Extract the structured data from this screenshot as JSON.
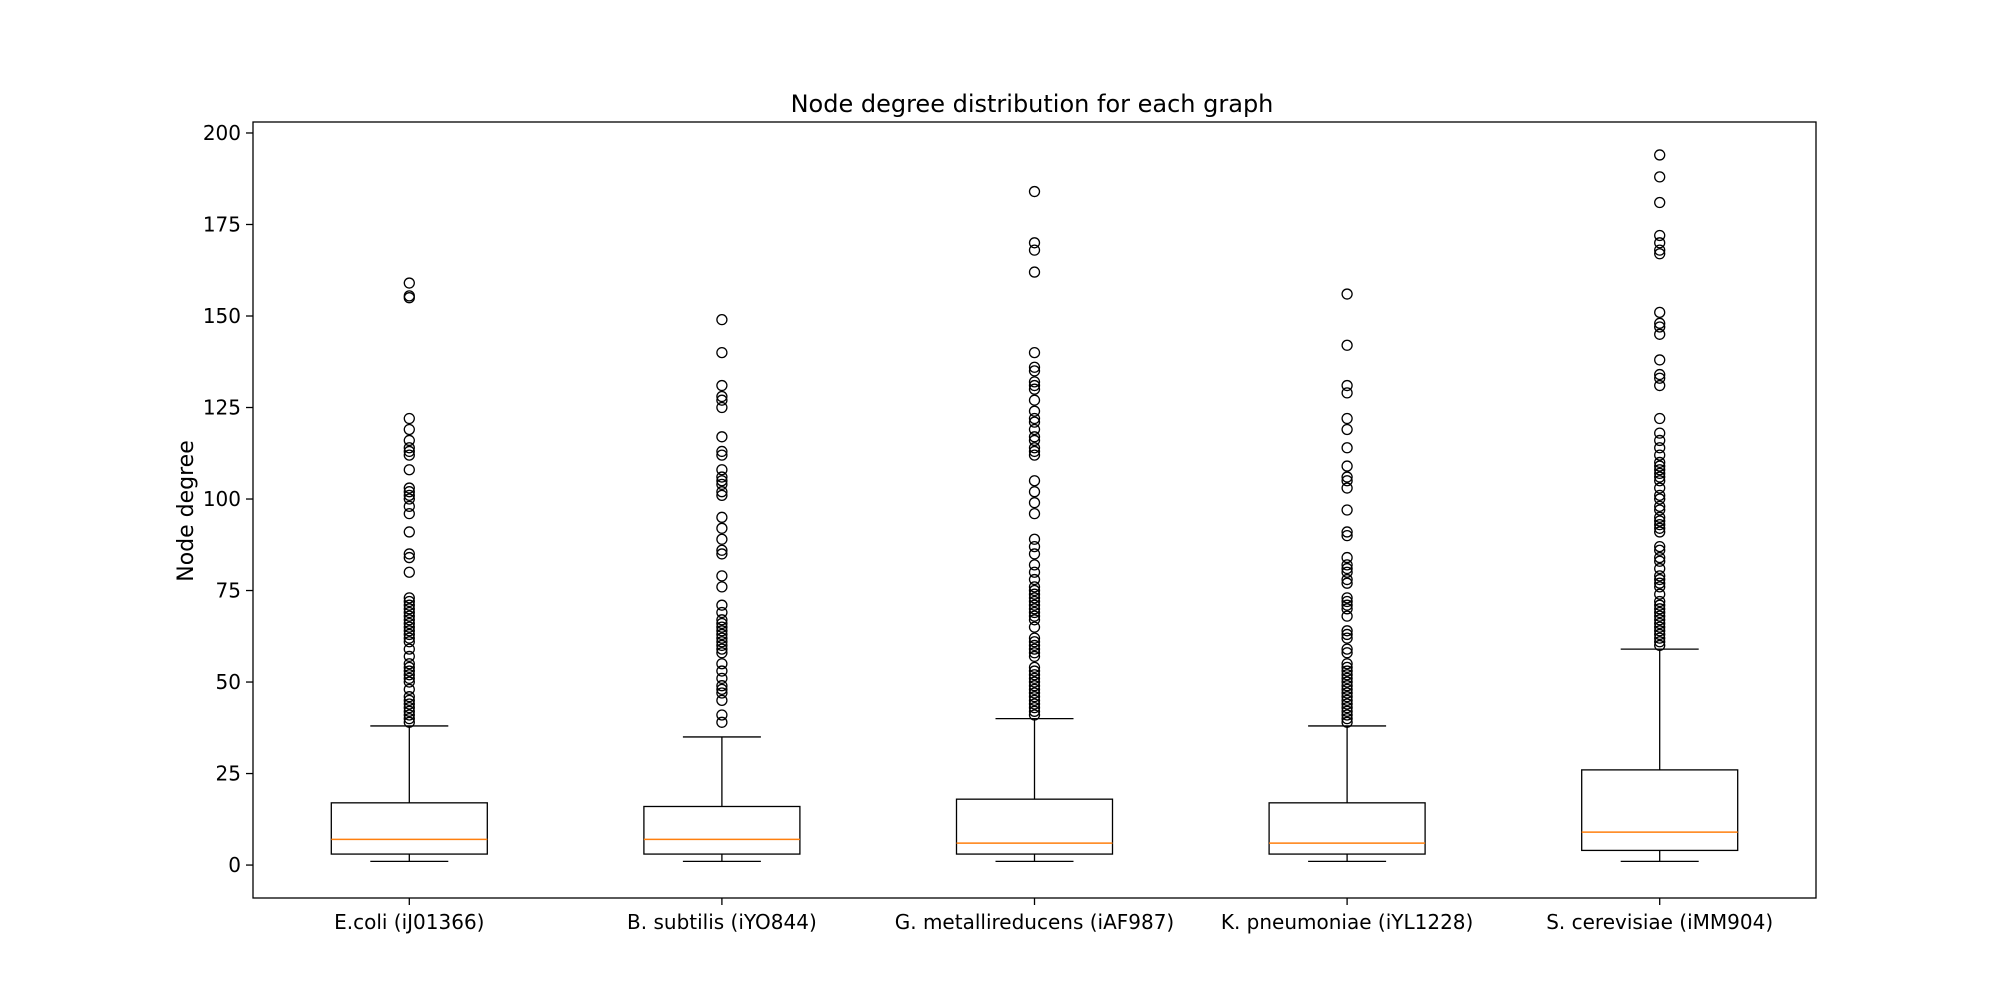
{
  "chart_data": {
    "type": "boxplot",
    "title": "Node degree distribution for each graph",
    "xlabel": "",
    "ylabel": "Node degree",
    "ylim": [
      -9,
      203
    ],
    "yticks": [
      0,
      25,
      50,
      75,
      100,
      125,
      150,
      175,
      200
    ],
    "grid": false,
    "legend": "none",
    "colors": {
      "box": "#000000",
      "median": "#ff7f0e",
      "flier": "#000000"
    },
    "categories": [
      "E.coli (iJ01366)",
      "B. subtilis (iYO844)",
      "G. metallireducens (iAF987)",
      "K. pneumoniae (iYL1228)",
      "S. cerevisiae (iMM904)"
    ],
    "series": [
      {
        "whisker_low": 1,
        "q1": 3,
        "median": 7,
        "q3": 17,
        "whisker_high": 38,
        "fliers": [
          39,
          40,
          41,
          42,
          43,
          44,
          45,
          46,
          48,
          50,
          51,
          52,
          53,
          54,
          55,
          57,
          59,
          61,
          62,
          63,
          64,
          65,
          66,
          67,
          68,
          69,
          70,
          71,
          72,
          73,
          80,
          84,
          85,
          91,
          96,
          98,
          100,
          101,
          102,
          103,
          108,
          112,
          113,
          114,
          116,
          119,
          122,
          155,
          155.5,
          159
        ]
      },
      {
        "whisker_low": 1,
        "q1": 3,
        "median": 7,
        "q3": 16,
        "whisker_high": 35,
        "fliers": [
          39,
          41,
          45,
          47,
          48,
          49,
          51,
          53,
          55,
          58,
          59,
          60,
          61,
          62,
          63,
          64,
          65,
          66,
          67,
          69,
          71,
          76,
          79,
          85,
          86,
          89,
          92,
          95,
          101,
          102,
          104,
          105,
          106,
          108,
          112,
          113,
          117,
          125,
          127,
          128,
          131,
          140,
          149
        ]
      },
      {
        "whisker_low": 1,
        "q1": 3,
        "median": 6,
        "q3": 18,
        "whisker_high": 40,
        "fliers": [
          41,
          42,
          43,
          44,
          45,
          46,
          47,
          48,
          49,
          50,
          51,
          52,
          53,
          54,
          57,
          58,
          59,
          60,
          61,
          62,
          65,
          67,
          68,
          69,
          70,
          71,
          72,
          73,
          74,
          75,
          76,
          78,
          80,
          82,
          85,
          87,
          89,
          96,
          99,
          102,
          105,
          112,
          113,
          114,
          116,
          117,
          119,
          121,
          122,
          124,
          127,
          130,
          131,
          132,
          135,
          136,
          140,
          162,
          168,
          170,
          184
        ]
      },
      {
        "whisker_low": 1,
        "q1": 3,
        "median": 6,
        "q3": 17,
        "whisker_high": 38,
        "fliers": [
          39,
          40,
          41,
          42,
          43,
          44,
          45,
          46,
          47,
          48,
          49,
          50,
          51,
          52,
          53,
          54,
          55,
          58,
          59,
          62,
          63,
          64,
          68,
          70,
          71,
          72,
          73,
          77,
          78,
          80,
          81,
          82,
          84,
          90,
          91,
          97,
          103,
          105,
          106,
          109,
          114,
          119,
          122,
          129,
          131,
          142,
          156
        ]
      },
      {
        "whisker_low": 1,
        "q1": 4,
        "median": 9,
        "q3": 26,
        "whisker_high": 59,
        "fliers": [
          60,
          61,
          62,
          63,
          64,
          65,
          66,
          67,
          68,
          69,
          70,
          71,
          72,
          74,
          76,
          77,
          78,
          79,
          81,
          83,
          84,
          86,
          87,
          91,
          92,
          93,
          94,
          95,
          97,
          98,
          100,
          101,
          103,
          105,
          106,
          107,
          108,
          109,
          110,
          112,
          114,
          116,
          118,
          122,
          131,
          133,
          134,
          138,
          145,
          147,
          148,
          151,
          167,
          168,
          170,
          172,
          181,
          188,
          194
        ]
      }
    ]
  }
}
